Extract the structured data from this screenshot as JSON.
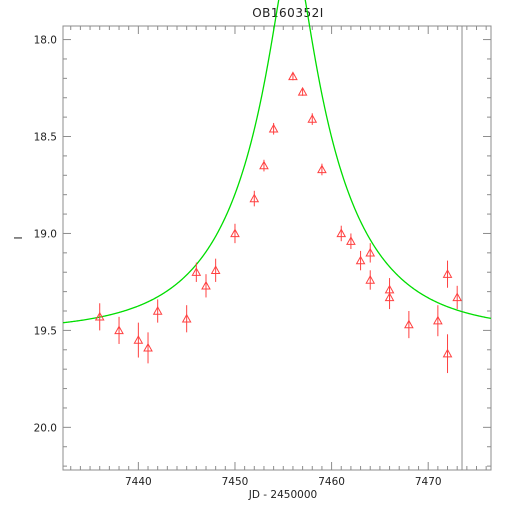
{
  "chart_data": {
    "type": "scatter",
    "title": "OB160352I",
    "xlabel": "JD - 2450000",
    "ylabel": "I",
    "xlim": [
      7432.2,
      7476.5
    ],
    "ylim": [
      20.22,
      17.93
    ],
    "y_inverted": true,
    "x_ticks": [
      7440,
      7450,
      7460,
      7470
    ],
    "y_ticks": [
      "18.0",
      "18.5",
      "19.0",
      "19.5",
      "20.0"
    ],
    "grid": false,
    "vertical_line_x": 7473.5,
    "colors": {
      "points": "#ff4040",
      "model": "#00dd00",
      "axis": "#8c8c8c",
      "marker_line": "#8c8c8c"
    },
    "model": {
      "t0": 7455.9,
      "u0": 0.165,
      "tE": 10.5,
      "i_base": 19.505,
      "color": "#00dd00"
    },
    "points": [
      {
        "x": 7436.0,
        "y": 19.43,
        "err": 0.07
      },
      {
        "x": 7438.0,
        "y": 19.5,
        "err": 0.07
      },
      {
        "x": 7440.0,
        "y": 19.55,
        "err": 0.09
      },
      {
        "x": 7441.0,
        "y": 19.59,
        "err": 0.08
      },
      {
        "x": 7442.0,
        "y": 19.4,
        "err": 0.06
      },
      {
        "x": 7445.0,
        "y": 19.44,
        "err": 0.07
      },
      {
        "x": 7446.0,
        "y": 19.2,
        "err": 0.05
      },
      {
        "x": 7447.0,
        "y": 19.27,
        "err": 0.06
      },
      {
        "x": 7448.0,
        "y": 19.19,
        "err": 0.06
      },
      {
        "x": 7450.0,
        "y": 19.0,
        "err": 0.05
      },
      {
        "x": 7452.0,
        "y": 18.82,
        "err": 0.04
      },
      {
        "x": 7453.0,
        "y": 18.65,
        "err": 0.03
      },
      {
        "x": 7454.0,
        "y": 18.46,
        "err": 0.03
      },
      {
        "x": 7456.0,
        "y": 18.19,
        "err": 0.02
      },
      {
        "x": 7457.0,
        "y": 18.27,
        "err": 0.02
      },
      {
        "x": 7458.0,
        "y": 18.41,
        "err": 0.03
      },
      {
        "x": 7459.0,
        "y": 18.67,
        "err": 0.03
      },
      {
        "x": 7461.0,
        "y": 19.0,
        "err": 0.04
      },
      {
        "x": 7462.0,
        "y": 19.04,
        "err": 0.04
      },
      {
        "x": 7463.0,
        "y": 19.14,
        "err": 0.05
      },
      {
        "x": 7464.0,
        "y": 19.1,
        "err": 0.05
      },
      {
        "x": 7464.0,
        "y": 19.24,
        "err": 0.05
      },
      {
        "x": 7466.0,
        "y": 19.29,
        "err": 0.06
      },
      {
        "x": 7466.0,
        "y": 19.33,
        "err": 0.06
      },
      {
        "x": 7468.0,
        "y": 19.47,
        "err": 0.07
      },
      {
        "x": 7471.0,
        "y": 19.45,
        "err": 0.08
      },
      {
        "x": 7472.0,
        "y": 19.21,
        "err": 0.07
      },
      {
        "x": 7472.0,
        "y": 19.62,
        "err": 0.1
      },
      {
        "x": 7473.0,
        "y": 19.33,
        "err": 0.06
      }
    ]
  }
}
